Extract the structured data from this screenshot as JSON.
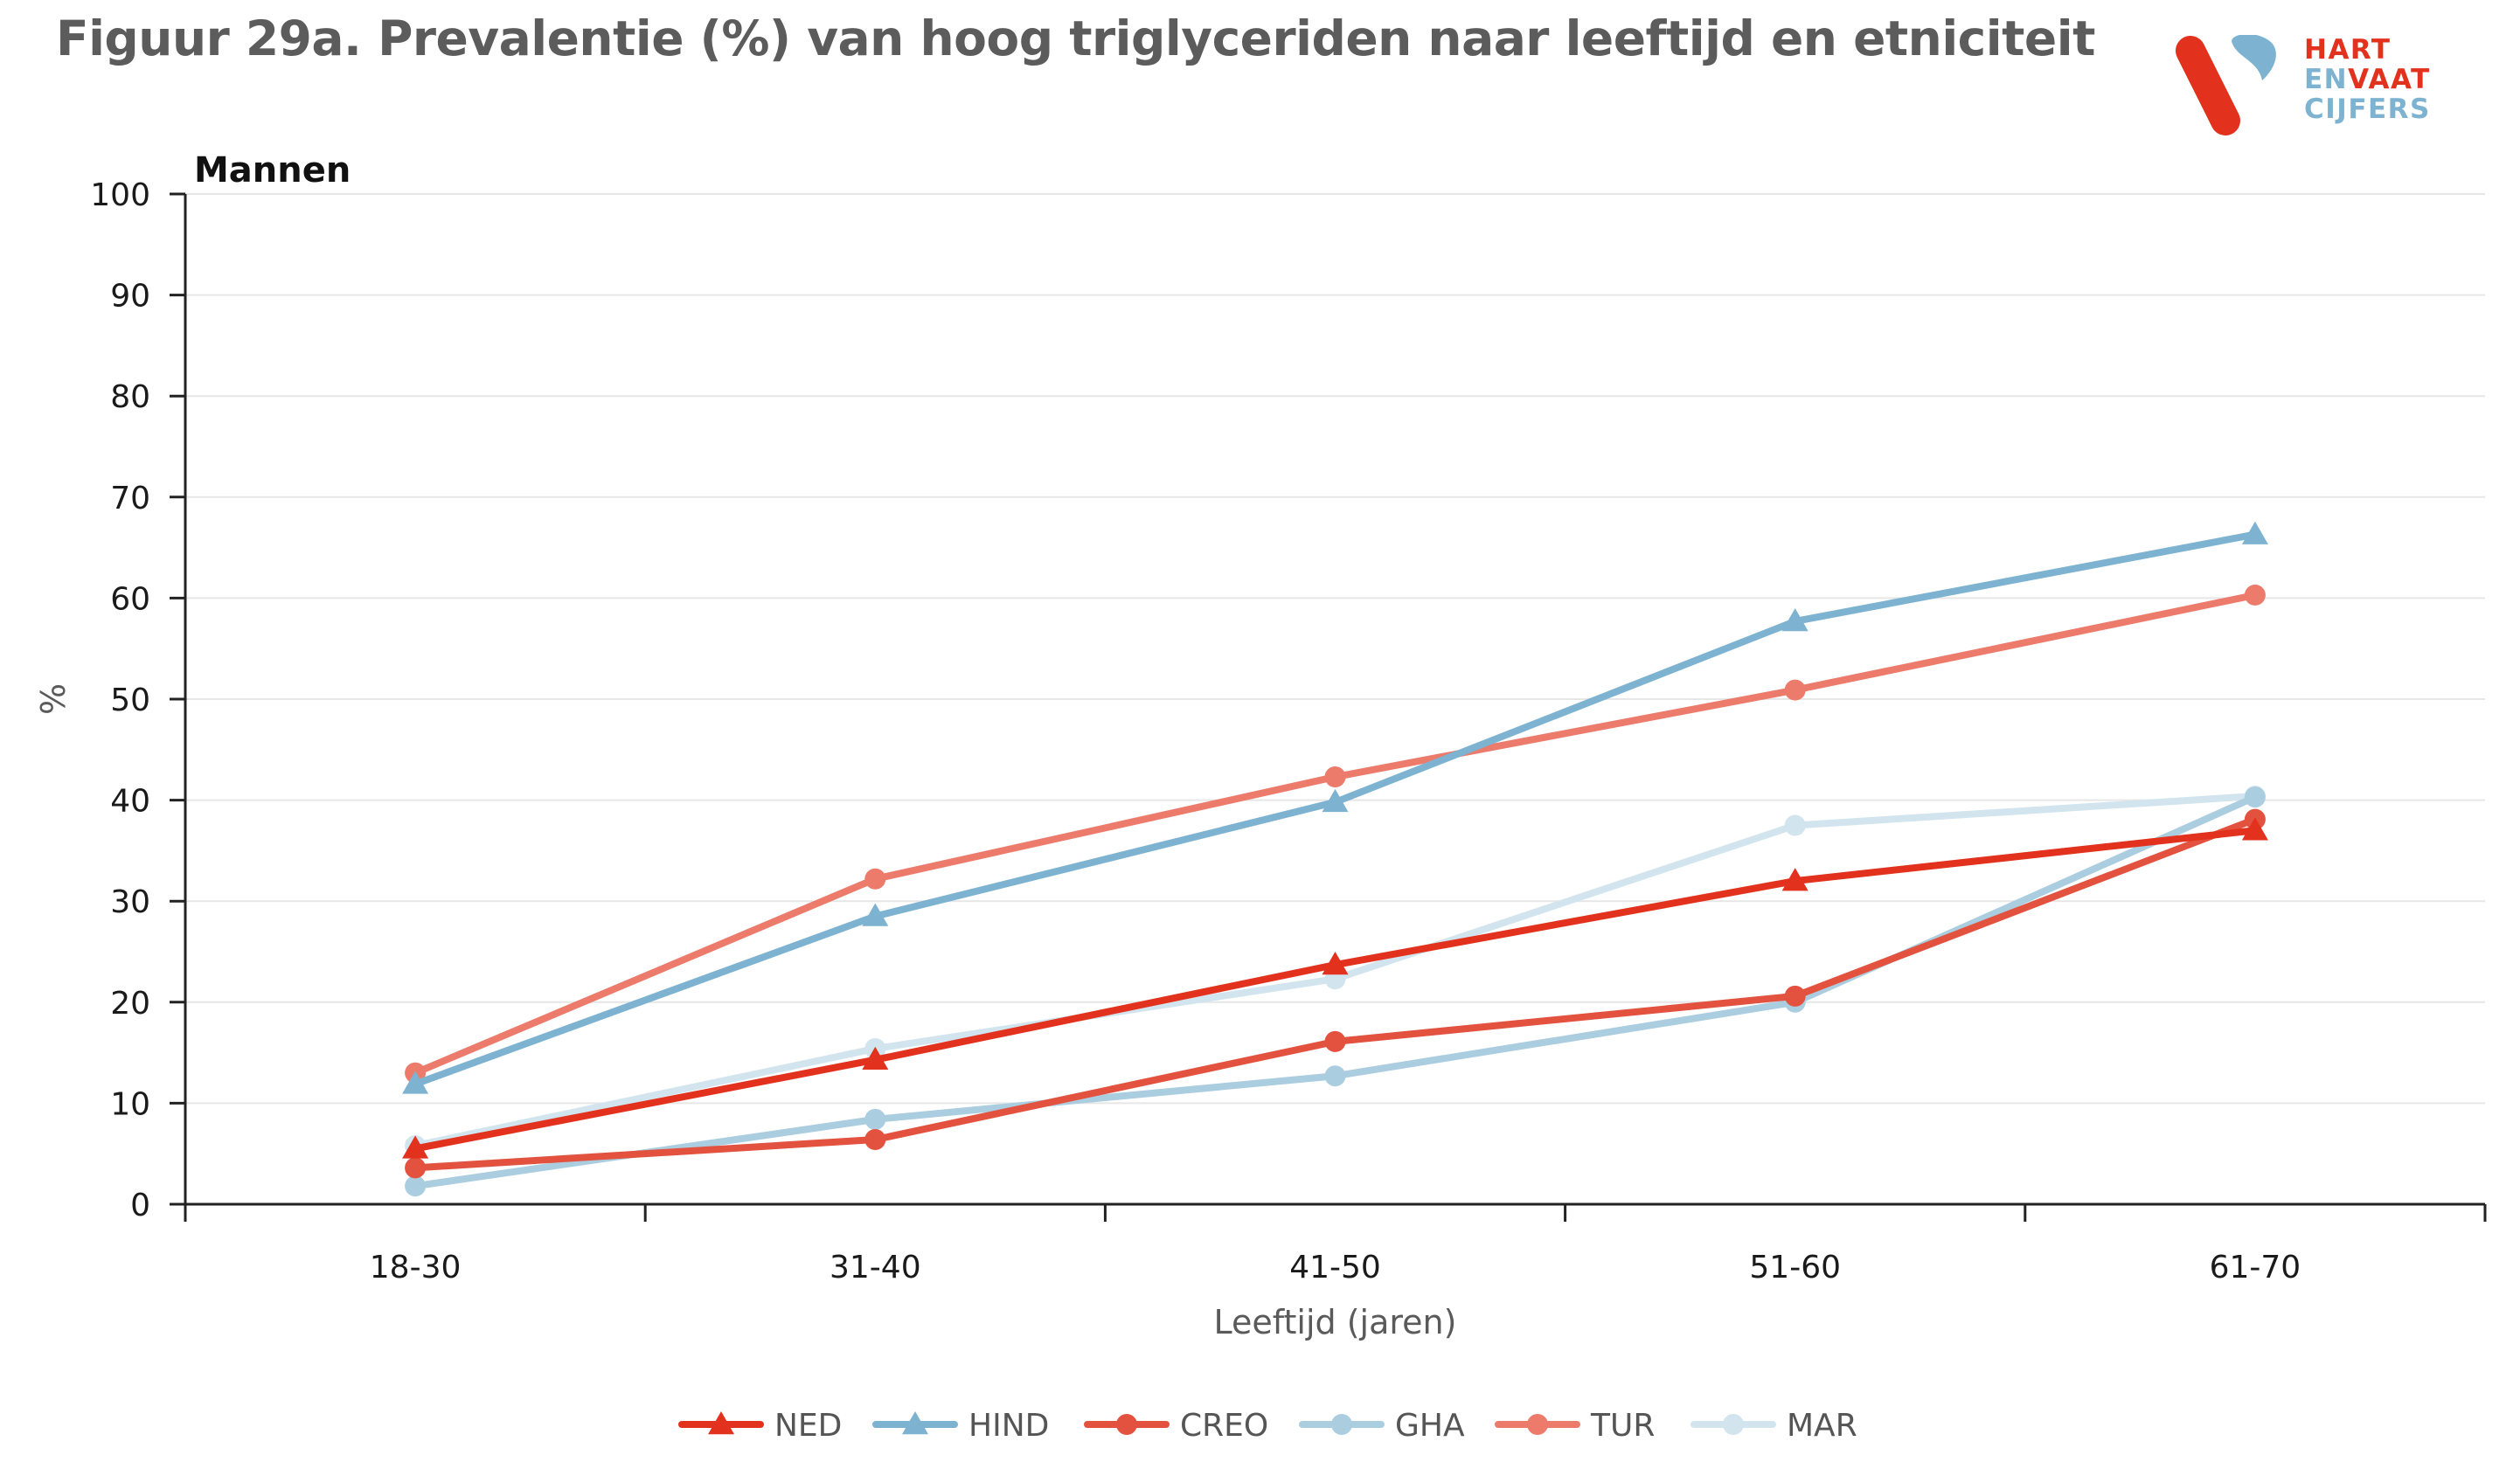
{
  "title": "Figuur 29a. Prevalentie (%) van hoog triglyceriden naar leeftijd en etniciteit",
  "logo": {
    "line1": "HART",
    "line2a": "EN",
    "line2b": "VAAT",
    "line3": "CIJFERS",
    "colors": {
      "red": "#e2311d",
      "blue": "#7db3d1"
    }
  },
  "chart_data": {
    "type": "line",
    "subtitle": "Mannen",
    "xlabel": "Leeftijd (jaren)",
    "ylabel": "%",
    "ylim": [
      0,
      100
    ],
    "yticks": [
      0,
      10,
      20,
      30,
      40,
      50,
      60,
      70,
      80,
      90,
      100
    ],
    "categories": [
      "18-30",
      "31-40",
      "41-50",
      "51-60",
      "61-70"
    ],
    "grid": true,
    "legend_position": "bottom",
    "series": [
      {
        "name": "NED",
        "marker": "triangle",
        "color": "#e2311d",
        "values": [
          5.5,
          14.3,
          23.7,
          32.0,
          37.0
        ]
      },
      {
        "name": "HIND",
        "marker": "triangle",
        "color": "#7db3d1",
        "values": [
          11.9,
          28.5,
          39.8,
          57.7,
          66.3
        ]
      },
      {
        "name": "CREO",
        "marker": "circle",
        "color": "#e3523f",
        "values": [
          3.6,
          6.4,
          16.1,
          20.6,
          38.1
        ]
      },
      {
        "name": "GHA",
        "marker": "circle",
        "color": "#abcde0",
        "values": [
          1.8,
          8.4,
          12.7,
          20.0,
          40.3
        ]
      },
      {
        "name": "TUR",
        "marker": "circle",
        "color": "#ec7b6c",
        "values": [
          13.0,
          32.2,
          42.3,
          50.9,
          60.3
        ]
      },
      {
        "name": "MAR",
        "marker": "circle",
        "color": "#d2e5ef",
        "values": [
          5.8,
          15.4,
          22.3,
          37.5,
          40.4
        ]
      }
    ]
  }
}
